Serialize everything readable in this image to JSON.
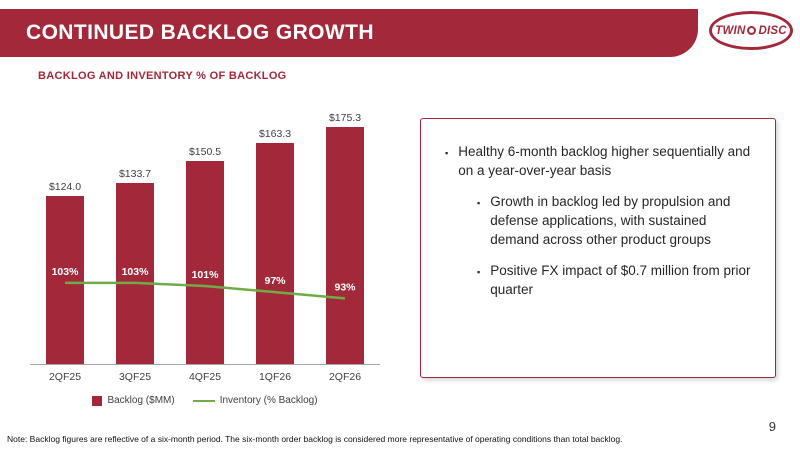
{
  "colors": {
    "brand_red": "#A3293A",
    "line_green": "#6FAC46"
  },
  "header": {
    "title": "CONTINUED BACKLOG GROWTH"
  },
  "logo": {
    "word1": "TWIN",
    "word2": "DISC"
  },
  "chart": {
    "subtitle": "BACKLOG AND INVENTORY % OF BACKLOG",
    "legend": [
      {
        "label": "Backlog ($MM)"
      },
      {
        "label": "Inventory (% Backlog)"
      }
    ]
  },
  "chart_data": {
    "type": "bar",
    "title": "BACKLOG AND INVENTORY % OF BACKLOG",
    "categories": [
      "2QF25",
      "3QF25",
      "4QF25",
      "1QF26",
      "2QF26"
    ],
    "series": [
      {
        "name": "Backlog ($MM)",
        "type": "bar",
        "color": "#A3293A",
        "values": [
          124.0,
          133.7,
          150.5,
          163.3,
          175.3
        ],
        "labels": [
          "$124.0",
          "$133.7",
          "$150.5",
          "$163.3",
          "$175.3"
        ]
      },
      {
        "name": "Inventory (% Backlog)",
        "type": "line",
        "color": "#6FAC46",
        "values": [
          103,
          103,
          101,
          97,
          93
        ],
        "labels": [
          "103%",
          "103%",
          "101%",
          "97%",
          "93%"
        ]
      }
    ],
    "legend_position": "bottom",
    "grid": false
  },
  "callout": {
    "bullets": [
      {
        "level": 1,
        "text": "Healthy 6-month backlog higher sequentially and on a year-over-year basis"
      },
      {
        "level": 2,
        "text": "Growth in backlog led by propulsion and defense applications, with sustained demand across other product groups"
      },
      {
        "level": 2,
        "text": "Positive FX impact of $0.7 million from prior quarter"
      }
    ]
  },
  "footer": {
    "note": "Note: Backlog figures are reflective of a six-month period. The six-month order backlog is considered more representative of operating conditions than total backlog.",
    "page_number": "9"
  }
}
